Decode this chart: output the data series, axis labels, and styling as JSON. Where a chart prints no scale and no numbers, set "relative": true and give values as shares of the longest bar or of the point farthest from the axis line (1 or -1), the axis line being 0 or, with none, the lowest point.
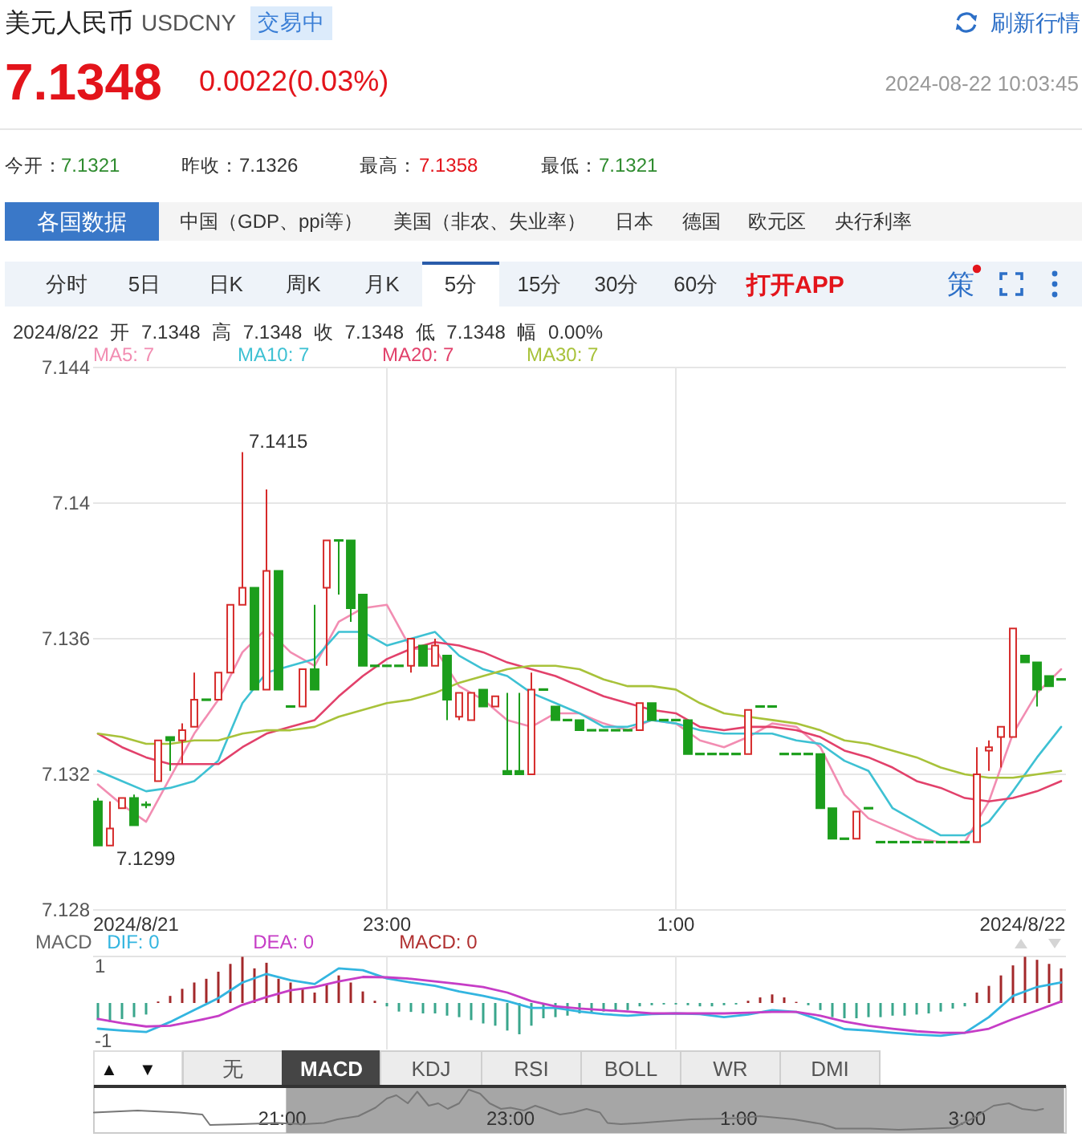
{
  "chart_data": [
    {
      "type": "other",
      "title": "美元人民币",
      "annotations": [
        "USDCNY",
        "交易中",
        "刷新行情",
        "7.1348",
        "0.0022(0.03%)",
        "2024-08-22 10:03:45",
        "今开：",
        "7.1321",
        "昨收：",
        "7.1326",
        "最高：",
        "7.1358",
        "最低：",
        "7.1321",
        "各国数据",
        "中国（GDP、ppi等）",
        "美国（非农、失业率）",
        "日本",
        "德国",
        "欧元区",
        "央行利率",
        "分时",
        "5日",
        "日K",
        "周K",
        "月K",
        "5分",
        "15分",
        "30分",
        "60分",
        "打开APP",
        "策"
      ]
    },
    {
      "type": "candlestick",
      "subtitle": "2024/8/22 开 7.1348 高 7.1348 收 7.1348 低 7.1348 幅 0.00%",
      "x": [
        "2024-08-21T21:00",
        "2024-08-21T21:05",
        "2024-08-21T21:10",
        "2024-08-21T21:15",
        "2024-08-21T21:20",
        "2024-08-21T21:25",
        "2024-08-21T21:30",
        "2024-08-21T21:35",
        "2024-08-21T21:40",
        "2024-08-21T21:45",
        "2024-08-21T21:50",
        "2024-08-21T21:55",
        "2024-08-21T22:00",
        "2024-08-21T22:05",
        "2024-08-21T22:10",
        "2024-08-21T22:15",
        "2024-08-21T22:20",
        "2024-08-21T22:25",
        "2024-08-21T22:30",
        "2024-08-21T22:35",
        "2024-08-21T22:40",
        "2024-08-21T22:45",
        "2024-08-21T22:50",
        "2024-08-21T22:55",
        "2024-08-21T23:00",
        "2024-08-21T23:05",
        "2024-08-21T23:10",
        "2024-08-21T23:15",
        "2024-08-21T23:20",
        "2024-08-21T23:25",
        "2024-08-21T23:30",
        "2024-08-21T23:35",
        "2024-08-21T23:40",
        "2024-08-21T23:45",
        "2024-08-21T23:50",
        "2024-08-21T23:55",
        "2024-08-22T00:00",
        "2024-08-22T00:05",
        "2024-08-22T00:10",
        "2024-08-22T00:15",
        "2024-08-22T00:20",
        "2024-08-22T00:25",
        "2024-08-22T00:30",
        "2024-08-22T00:35",
        "2024-08-22T00:40",
        "2024-08-22T00:45",
        "2024-08-22T00:50",
        "2024-08-22T00:55",
        "2024-08-22T01:00",
        "2024-08-22T01:05",
        "2024-08-22T01:10",
        "2024-08-22T01:15",
        "2024-08-22T01:20",
        "2024-08-22T01:25",
        "2024-08-22T01:30",
        "2024-08-22T01:35",
        "2024-08-22T01:40",
        "2024-08-22T01:45",
        "2024-08-22T01:50",
        "2024-08-22T01:55",
        "2024-08-22T02:00",
        "2024-08-22T02:05",
        "2024-08-22T02:10",
        "2024-08-22T02:15",
        "2024-08-22T02:20",
        "2024-08-22T02:25",
        "2024-08-22T02:30",
        "2024-08-22T02:35",
        "2024-08-22T02:40",
        "2024-08-22T02:45",
        "2024-08-22T02:50",
        "2024-08-22T02:55",
        "2024-08-22T03:00",
        "2024-08-22T03:05",
        "2024-08-22T03:10",
        "2024-08-22T03:15",
        "2024-08-22T03:20",
        "2024-08-22T03:25",
        "2024-08-22T03:30",
        "2024-08-22T03:35",
        "2024-08-22T03:40"
      ],
      "ohlc": [
        [
          7.1312,
          7.1313,
          7.1299,
          7.1299
        ],
        [
          7.1299,
          7.1312,
          7.1299,
          7.1304
        ],
        [
          7.131,
          7.1313,
          7.131,
          7.1313
        ],
        [
          7.1313,
          7.1314,
          7.1305,
          7.1305
        ],
        [
          7.1311,
          7.1312,
          7.131,
          7.1311
        ],
        [
          7.1318,
          7.133,
          7.1318,
          7.133
        ],
        [
          7.1331,
          7.1331,
          7.1321,
          7.133
        ],
        [
          7.133,
          7.1335,
          7.1323,
          7.1333
        ],
        [
          7.1334,
          7.135,
          7.1334,
          7.1342
        ],
        [
          7.1342,
          7.1342,
          7.1342,
          7.1342
        ],
        [
          7.1342,
          7.135,
          7.1342,
          7.135
        ],
        [
          7.135,
          7.137,
          7.135,
          7.137
        ],
        [
          7.137,
          7.1415,
          7.137,
          7.1375
        ],
        [
          7.1375,
          7.1375,
          7.1345,
          7.1345
        ],
        [
          7.1345,
          7.1404,
          7.1345,
          7.138
        ],
        [
          7.138,
          7.138,
          7.1345,
          7.1345
        ],
        [
          7.134,
          7.134,
          7.134,
          7.134
        ],
        [
          7.134,
          7.1351,
          7.134,
          7.1351
        ],
        [
          7.1351,
          7.137,
          7.1345,
          7.1345
        ],
        [
          7.1375,
          7.1389,
          7.1352,
          7.1389
        ],
        [
          7.1389,
          7.1389,
          7.1373,
          7.1389
        ],
        [
          7.1389,
          7.1389,
          7.1365,
          7.1369
        ],
        [
          7.1373,
          7.1373,
          7.1352,
          7.1352
        ],
        [
          7.1352,
          7.1352,
          7.1352,
          7.1352
        ],
        [
          7.1352,
          7.1352,
          7.1352,
          7.1352
        ],
        [
          7.1352,
          7.1352,
          7.1352,
          7.1352
        ],
        [
          7.1352,
          7.136,
          7.135,
          7.136
        ],
        [
          7.1358,
          7.1358,
          7.1352,
          7.1352
        ],
        [
          7.1352,
          7.136,
          7.1352,
          7.1358
        ],
        [
          7.1355,
          7.1355,
          7.1336,
          7.1342
        ],
        [
          7.1337,
          7.1344,
          7.1336,
          7.1344
        ],
        [
          7.1336,
          7.1344,
          7.1336,
          7.1344
        ],
        [
          7.1345,
          7.1345,
          7.134,
          7.134
        ],
        [
          7.134,
          7.1343,
          7.134,
          7.1343
        ],
        [
          7.1321,
          7.1344,
          7.132,
          7.132
        ],
        [
          7.1321,
          7.1344,
          7.132,
          7.132
        ],
        [
          7.132,
          7.135,
          7.132,
          7.1345
        ],
        [
          7.1345,
          7.1345,
          7.1345,
          7.1345
        ],
        [
          7.134,
          7.134,
          7.1336,
          7.1336
        ],
        [
          7.1336,
          7.1336,
          7.1336,
          7.1336
        ],
        [
          7.1336,
          7.1336,
          7.1333,
          7.1333
        ],
        [
          7.1333,
          7.1333,
          7.1333,
          7.1333
        ],
        [
          7.1333,
          7.1333,
          7.1333,
          7.1333
        ],
        [
          7.1333,
          7.1333,
          7.1333,
          7.1333
        ],
        [
          7.1333,
          7.1333,
          7.1333,
          7.1333
        ],
        [
          7.1333,
          7.1341,
          7.1333,
          7.1341
        ],
        [
          7.1341,
          7.1341,
          7.1336,
          7.1336
        ],
        [
          7.1336,
          7.1336,
          7.1336,
          7.1336
        ],
        [
          7.1336,
          7.1336,
          7.1336,
          7.1336
        ],
        [
          7.1336,
          7.1336,
          7.1326,
          7.1326
        ],
        [
          7.1326,
          7.1326,
          7.1326,
          7.1326
        ],
        [
          7.1326,
          7.1326,
          7.1326,
          7.1326
        ],
        [
          7.1326,
          7.1326,
          7.1326,
          7.1326
        ],
        [
          7.1326,
          7.1326,
          7.1326,
          7.1326
        ],
        [
          7.1326,
          7.1339,
          7.1326,
          7.1339
        ],
        [
          7.134,
          7.134,
          7.134,
          7.134
        ],
        [
          7.134,
          7.134,
          7.134,
          7.134
        ],
        [
          7.1326,
          7.1326,
          7.1326,
          7.1326
        ],
        [
          7.1326,
          7.1326,
          7.1326,
          7.1326
        ],
        [
          7.1326,
          7.1326,
          7.1326,
          7.1326
        ],
        [
          7.1326,
          7.1326,
          7.131,
          7.131
        ],
        [
          7.131,
          7.131,
          7.1301,
          7.1301
        ],
        [
          7.1301,
          7.1301,
          7.1301,
          7.1301
        ],
        [
          7.1301,
          7.1309,
          7.1301,
          7.1309
        ],
        [
          7.131,
          7.131,
          7.131,
          7.131
        ],
        [
          7.13,
          7.13,
          7.13,
          7.13
        ],
        [
          7.13,
          7.13,
          7.13,
          7.13
        ],
        [
          7.13,
          7.13,
          7.13,
          7.13
        ],
        [
          7.13,
          7.13,
          7.13,
          7.13
        ],
        [
          7.13,
          7.13,
          7.13,
          7.13
        ],
        [
          7.13,
          7.13,
          7.13,
          7.13
        ],
        [
          7.13,
          7.13,
          7.13,
          7.13
        ],
        [
          7.13,
          7.13,
          7.13,
          7.13
        ],
        [
          7.13,
          7.1328,
          7.13,
          7.132
        ],
        [
          7.1327,
          7.133,
          7.1321,
          7.1328
        ],
        [
          7.1331,
          7.1334,
          7.1322,
          7.1334
        ],
        [
          7.1331,
          7.1363,
          7.1331,
          7.1363
        ],
        [
          7.1355,
          7.1355,
          7.1353,
          7.1353
        ],
        [
          7.1353,
          7.1353,
          7.134,
          7.1345
        ],
        [
          7.1349,
          7.1349,
          7.1346,
          7.1346
        ],
        [
          7.1348,
          7.1348,
          7.1348,
          7.1348
        ]
      ],
      "colors": [
        "#1c9e1c",
        "#d62b2b",
        "#d62b2b",
        "#1c9e1c",
        "#1c9e1c",
        "#d62b2b",
        "#1c9e1c",
        "#d62b2b",
        "#d62b2b",
        "#1c9e1c",
        "#d62b2b",
        "#d62b2b",
        "#d62b2b",
        "#1c9e1c",
        "#d62b2b",
        "#1c9e1c",
        "#1c9e1c",
        "#d62b2b",
        "#1c9e1c",
        "#d62b2b",
        "#1c9e1c",
        "#1c9e1c",
        "#1c9e1c",
        "#1c9e1c",
        "#1c9e1c",
        "#1c9e1c",
        "#d62b2b",
        "#1c9e1c",
        "#d62b2b",
        "#1c9e1c",
        "#d62b2b",
        "#d62b2b",
        "#1c9e1c",
        "#d62b2b",
        "#1c9e1c",
        "#1c9e1c",
        "#d62b2b",
        "#1c9e1c",
        "#1c9e1c",
        "#1c9e1c",
        "#1c9e1c",
        "#1c9e1c",
        "#1c9e1c",
        "#1c9e1c",
        "#1c9e1c",
        "#d62b2b",
        "#1c9e1c",
        "#1c9e1c",
        "#1c9e1c",
        "#1c9e1c",
        "#1c9e1c",
        "#1c9e1c",
        "#1c9e1c",
        "#1c9e1c",
        "#d62b2b",
        "#1c9e1c",
        "#1c9e1c",
        "#1c9e1c",
        "#1c9e1c",
        "#1c9e1c",
        "#1c9e1c",
        "#1c9e1c",
        "#1c9e1c",
        "#d62b2b",
        "#1c9e1c",
        "#1c9e1c",
        "#1c9e1c",
        "#1c9e1c",
        "#1c9e1c",
        "#1c9e1c",
        "#1c9e1c",
        "#1c9e1c",
        "#1c9e1c",
        "#d62b2b",
        "#d62b2b",
        "#d62b2b",
        "#d62b2b",
        "#1c9e1c",
        "#1c9e1c",
        "#1c9e1c",
        "#1c9e1c"
      ],
      "series": [
        {
          "name": "MA5: 7",
          "type": "line",
          "color": "#f28db2",
          "x": [
            "2024-08-21T21:00",
            "2024-08-21T21:10",
            "2024-08-21T21:20",
            "2024-08-21T21:30",
            "2024-08-21T21:40",
            "2024-08-21T21:50",
            "2024-08-21T22:00",
            "2024-08-21T22:10",
            "2024-08-21T22:20",
            "2024-08-21T22:30",
            "2024-08-21T22:40",
            "2024-08-21T22:50",
            "2024-08-21T23:00",
            "2024-08-21T23:10",
            "2024-08-21T23:20",
            "2024-08-21T23:30",
            "2024-08-21T23:40",
            "2024-08-21T23:50",
            "2024-08-22T00:00",
            "2024-08-22T00:10",
            "2024-08-22T00:20",
            "2024-08-22T00:30",
            "2024-08-22T00:40",
            "2024-08-22T00:50",
            "2024-08-22T01:00",
            "2024-08-22T01:10",
            "2024-08-22T01:20",
            "2024-08-22T01:30",
            "2024-08-22T01:40",
            "2024-08-22T01:50",
            "2024-08-22T02:00",
            "2024-08-22T02:10",
            "2024-08-22T02:20",
            "2024-08-22T02:30",
            "2024-08-22T02:40",
            "2024-08-22T02:50",
            "2024-08-22T03:00",
            "2024-08-22T03:10",
            "2024-08-22T03:20",
            "2024-08-22T03:30",
            "2024-08-22T03:40"
          ],
          "values": [
            7.1317,
            7.1311,
            7.1306,
            7.1319,
            7.1332,
            7.1342,
            7.1356,
            7.1363,
            7.1356,
            7.1352,
            7.1365,
            7.1369,
            7.137,
            7.1357,
            7.1357,
            7.1346,
            7.1342,
            7.1336,
            7.1334,
            7.1338,
            7.1338,
            7.1335,
            7.1333,
            7.1336,
            7.1335,
            7.133,
            7.1328,
            7.1331,
            7.1335,
            7.1334,
            7.1328,
            7.1314,
            7.1307,
            7.1304,
            7.1301,
            7.13,
            7.13,
            7.1312,
            7.1332,
            7.1344,
            7.1351
          ]
        },
        {
          "name": "MA10: 7",
          "type": "line",
          "color": "#3ec1d3",
          "x": [
            "2024-08-21T21:00",
            "2024-08-21T21:10",
            "2024-08-21T21:20",
            "2024-08-21T21:30",
            "2024-08-21T21:40",
            "2024-08-21T21:50",
            "2024-08-21T22:00",
            "2024-08-21T22:10",
            "2024-08-21T22:20",
            "2024-08-21T22:30",
            "2024-08-21T22:40",
            "2024-08-21T22:50",
            "2024-08-21T23:00",
            "2024-08-21T23:10",
            "2024-08-21T23:20",
            "2024-08-21T23:30",
            "2024-08-21T23:40",
            "2024-08-21T23:50",
            "2024-08-22T00:00",
            "2024-08-22T00:10",
            "2024-08-22T00:20",
            "2024-08-22T00:30",
            "2024-08-22T00:40",
            "2024-08-22T00:50",
            "2024-08-22T01:00",
            "2024-08-22T01:10",
            "2024-08-22T01:20",
            "2024-08-22T01:30",
            "2024-08-22T01:40",
            "2024-08-22T01:50",
            "2024-08-22T02:00",
            "2024-08-22T02:10",
            "2024-08-22T02:20",
            "2024-08-22T02:30",
            "2024-08-22T02:40",
            "2024-08-22T02:50",
            "2024-08-22T03:00",
            "2024-08-22T03:10",
            "2024-08-22T03:20",
            "2024-08-22T03:30",
            "2024-08-22T03:40"
          ],
          "values": [
            7.1321,
            7.1318,
            7.1315,
            7.1316,
            7.1318,
            7.1324,
            7.1341,
            7.135,
            7.1352,
            7.1354,
            7.1362,
            7.1362,
            7.1358,
            7.136,
            7.1362,
            7.1355,
            7.1351,
            7.1349,
            7.1344,
            7.1341,
            7.1338,
            7.1334,
            7.1334,
            7.1336,
            7.1335,
            7.1333,
            7.1332,
            7.1332,
            7.1332,
            7.133,
            7.1329,
            7.1324,
            7.1321,
            7.131,
            7.1306,
            7.1302,
            7.1302,
            7.1306,
            7.1315,
            7.1325,
            7.1334
          ]
        },
        {
          "name": "MA20: 7",
          "type": "line",
          "color": "#e2416b",
          "x": [
            "2024-08-21T21:00",
            "2024-08-21T21:10",
            "2024-08-21T21:20",
            "2024-08-21T21:30",
            "2024-08-21T21:40",
            "2024-08-21T21:50",
            "2024-08-21T22:00",
            "2024-08-21T22:10",
            "2024-08-21T22:20",
            "2024-08-21T22:30",
            "2024-08-21T22:40",
            "2024-08-21T22:50",
            "2024-08-21T23:00",
            "2024-08-21T23:10",
            "2024-08-21T23:20",
            "2024-08-21T23:30",
            "2024-08-21T23:40",
            "2024-08-21T23:50",
            "2024-08-22T00:00",
            "2024-08-22T00:10",
            "2024-08-22T00:20",
            "2024-08-22T00:30",
            "2024-08-22T00:40",
            "2024-08-22T00:50",
            "2024-08-22T01:00",
            "2024-08-22T01:10",
            "2024-08-22T01:20",
            "2024-08-22T01:30",
            "2024-08-22T01:40",
            "2024-08-22T01:50",
            "2024-08-22T02:00",
            "2024-08-22T02:10",
            "2024-08-22T02:20",
            "2024-08-22T02:30",
            "2024-08-22T02:40",
            "2024-08-22T02:50",
            "2024-08-22T03:00",
            "2024-08-22T03:10",
            "2024-08-22T03:20",
            "2024-08-22T03:30",
            "2024-08-22T03:40"
          ],
          "values": [
            7.1332,
            7.1328,
            7.1325,
            7.1323,
            7.1323,
            7.1323,
            7.1328,
            7.1332,
            7.1334,
            7.1336,
            7.1343,
            7.1349,
            7.1354,
            7.1357,
            7.1359,
            7.1358,
            7.1356,
            7.1353,
            7.1351,
            7.1349,
            7.1346,
            7.1343,
            7.1341,
            7.1339,
            7.1338,
            7.1334,
            7.1333,
            7.1334,
            7.1334,
            7.1333,
            7.1331,
            7.1327,
            7.1325,
            7.1322,
            7.1318,
            7.1316,
            7.1313,
            7.1312,
            7.1313,
            7.1315,
            7.1318
          ]
        },
        {
          "name": "MA30: 7",
          "type": "line",
          "color": "#a8c23a",
          "x": [
            "2024-08-21T21:00",
            "2024-08-21T21:10",
            "2024-08-21T21:20",
            "2024-08-21T21:30",
            "2024-08-21T21:40",
            "2024-08-21T21:50",
            "2024-08-21T22:00",
            "2024-08-21T22:10",
            "2024-08-21T22:20",
            "2024-08-21T22:30",
            "2024-08-21T22:40",
            "2024-08-21T22:50",
            "2024-08-21T23:00",
            "2024-08-21T23:10",
            "2024-08-21T23:20",
            "2024-08-21T23:30",
            "2024-08-21T23:40",
            "2024-08-21T23:50",
            "2024-08-22T00:00",
            "2024-08-22T00:10",
            "2024-08-22T00:20",
            "2024-08-22T00:30",
            "2024-08-22T00:40",
            "2024-08-22T00:50",
            "2024-08-22T01:00",
            "2024-08-22T01:10",
            "2024-08-22T01:20",
            "2024-08-22T01:30",
            "2024-08-22T01:40",
            "2024-08-22T01:50",
            "2024-08-22T02:00",
            "2024-08-22T02:10",
            "2024-08-22T02:20",
            "2024-08-22T02:30",
            "2024-08-22T02:40",
            "2024-08-22T02:50",
            "2024-08-22T03:00",
            "2024-08-22T03:10",
            "2024-08-22T03:20",
            "2024-08-22T03:30",
            "2024-08-22T03:40"
          ],
          "values": [
            7.1332,
            7.1331,
            7.1329,
            7.1329,
            7.133,
            7.133,
            7.1332,
            7.1333,
            7.1333,
            7.1334,
            7.1337,
            7.1339,
            7.1341,
            7.1342,
            7.1344,
            7.1347,
            7.1349,
            7.1351,
            7.1352,
            7.1352,
            7.1351,
            7.1348,
            7.1346,
            7.1346,
            7.1345,
            7.1341,
            7.1338,
            7.1337,
            7.1336,
            7.1335,
            7.1333,
            7.133,
            7.1329,
            7.1327,
            7.1325,
            7.1322,
            7.132,
            7.1319,
            7.1319,
            7.132,
            7.1321
          ]
        }
      ],
      "xlim": [
        "2024-08-21T20:58",
        "2024-08-22T03:42"
      ],
      "xticks": [
        {
          "value": "2024-08-21T21:00",
          "label": "2024/8/21"
        },
        {
          "value": "2024-08-21T23:00",
          "label": "23:00"
        },
        {
          "value": "2024-08-22T01:00",
          "label": "1:00"
        },
        {
          "value": "2024-08-22T03:40",
          "label": "2024/8/22"
        }
      ],
      "ylim": [
        7.128,
        7.144
      ],
      "yticks": [
        7.128,
        7.132,
        7.136,
        7.14,
        7.144
      ],
      "grid": true,
      "legend": "top left",
      "annotations": [
        {
          "text": "7.1415",
          "x": "2024-08-21T22:00",
          "y": 7.1415
        },
        {
          "text": "7.1299",
          "x": "2024-08-21T21:05",
          "y": 7.1299
        }
      ]
    },
    {
      "type": "bar",
      "title": "MACD",
      "x": [
        "2024-08-21T21:00",
        "2024-08-21T21:05",
        "2024-08-21T21:10",
        "2024-08-21T21:15",
        "2024-08-21T21:20",
        "2024-08-21T21:25",
        "2024-08-21T21:30",
        "2024-08-21T21:35",
        "2024-08-21T21:40",
        "2024-08-21T21:45",
        "2024-08-21T21:50",
        "2024-08-21T21:55",
        "2024-08-21T22:00",
        "2024-08-21T22:05",
        "2024-08-21T22:10",
        "2024-08-21T22:15",
        "2024-08-21T22:20",
        "2024-08-21T22:25",
        "2024-08-21T22:30",
        "2024-08-21T22:35",
        "2024-08-21T22:40",
        "2024-08-21T22:45",
        "2024-08-21T22:50",
        "2024-08-21T22:55",
        "2024-08-21T23:00",
        "2024-08-21T23:05",
        "2024-08-21T23:10",
        "2024-08-21T23:15",
        "2024-08-21T23:20",
        "2024-08-21T23:25",
        "2024-08-21T23:30",
        "2024-08-21T23:35",
        "2024-08-21T23:40",
        "2024-08-21T23:45",
        "2024-08-21T23:50",
        "2024-08-21T23:55",
        "2024-08-22T00:00",
        "2024-08-22T00:05",
        "2024-08-22T00:10",
        "2024-08-22T00:15",
        "2024-08-22T00:20",
        "2024-08-22T00:25",
        "2024-08-22T00:30",
        "2024-08-22T00:35",
        "2024-08-22T00:40",
        "2024-08-22T00:45",
        "2024-08-22T00:50",
        "2024-08-22T00:55",
        "2024-08-22T01:00",
        "2024-08-22T01:05",
        "2024-08-22T01:10",
        "2024-08-22T01:15",
        "2024-08-22T01:20",
        "2024-08-22T01:25",
        "2024-08-22T01:30",
        "2024-08-22T01:35",
        "2024-08-22T01:40",
        "2024-08-22T01:45",
        "2024-08-22T01:50",
        "2024-08-22T01:55",
        "2024-08-22T02:00",
        "2024-08-22T02:05",
        "2024-08-22T02:10",
        "2024-08-22T02:15",
        "2024-08-22T02:20",
        "2024-08-22T02:25",
        "2024-08-22T02:30",
        "2024-08-22T02:35",
        "2024-08-22T02:40",
        "2024-08-22T02:45",
        "2024-08-22T02:50",
        "2024-08-22T02:55",
        "2024-08-22T03:00",
        "2024-08-22T03:05",
        "2024-08-22T03:10",
        "2024-08-22T03:15",
        "2024-08-22T03:20",
        "2024-08-22T03:25",
        "2024-08-22T03:30",
        "2024-08-22T03:35",
        "2024-08-22T03:40"
      ],
      "series": [
        {
          "name": "DIF: 0",
          "type": "line",
          "color": "#33b5e0",
          "x": [
            "2024-08-21T21:00",
            "2024-08-21T21:10",
            "2024-08-21T21:20",
            "2024-08-21T21:30",
            "2024-08-21T21:40",
            "2024-08-21T21:50",
            "2024-08-21T22:00",
            "2024-08-21T22:10",
            "2024-08-21T22:20",
            "2024-08-21T22:30",
            "2024-08-21T22:40",
            "2024-08-21T22:50",
            "2024-08-21T23:00",
            "2024-08-21T23:10",
            "2024-08-21T23:20",
            "2024-08-21T23:30",
            "2024-08-21T23:40",
            "2024-08-21T23:50",
            "2024-08-22T00:00",
            "2024-08-22T00:10",
            "2024-08-22T00:20",
            "2024-08-22T00:30",
            "2024-08-22T00:40",
            "2024-08-22T00:50",
            "2024-08-22T01:00",
            "2024-08-22T01:10",
            "2024-08-22T01:20",
            "2024-08-22T01:30",
            "2024-08-22T01:40",
            "2024-08-22T01:50",
            "2024-08-22T02:00",
            "2024-08-22T02:10",
            "2024-08-22T02:20",
            "2024-08-22T02:30",
            "2024-08-22T02:40",
            "2024-08-22T02:50",
            "2024-08-22T03:00",
            "2024-08-22T03:10",
            "2024-08-22T03:20",
            "2024-08-22T03:30",
            "2024-08-22T03:40"
          ],
          "values": [
            -0.69,
            -0.74,
            -0.78,
            -0.51,
            -0.19,
            0.13,
            0.55,
            0.78,
            0.61,
            0.51,
            0.93,
            0.88,
            0.66,
            0.55,
            0.46,
            0.31,
            0.19,
            0.05,
            -0.13,
            -0.13,
            -0.23,
            -0.3,
            -0.34,
            -0.3,
            -0.28,
            -0.3,
            -0.38,
            -0.31,
            -0.19,
            -0.24,
            -0.46,
            -0.7,
            -0.74,
            -0.8,
            -0.85,
            -0.88,
            -0.8,
            -0.38,
            0.19,
            0.43,
            0.55
          ]
        },
        {
          "name": "DEA: 0",
          "type": "line",
          "color": "#c63dc6",
          "x": [
            "2024-08-21T21:00",
            "2024-08-21T21:10",
            "2024-08-21T21:20",
            "2024-08-21T21:30",
            "2024-08-21T21:40",
            "2024-08-21T21:50",
            "2024-08-21T22:00",
            "2024-08-21T22:10",
            "2024-08-21T22:20",
            "2024-08-21T22:30",
            "2024-08-21T22:40",
            "2024-08-21T22:50",
            "2024-08-21T23:00",
            "2024-08-21T23:10",
            "2024-08-21T23:20",
            "2024-08-21T23:30",
            "2024-08-21T23:40",
            "2024-08-21T23:50",
            "2024-08-22T00:00",
            "2024-08-22T00:10",
            "2024-08-22T00:20",
            "2024-08-22T00:30",
            "2024-08-22T00:40",
            "2024-08-22T00:50",
            "2024-08-22T01:00",
            "2024-08-22T01:10",
            "2024-08-22T01:20",
            "2024-08-22T01:30",
            "2024-08-22T01:40",
            "2024-08-22T01:50",
            "2024-08-22T02:00",
            "2024-08-22T02:10",
            "2024-08-22T02:20",
            "2024-08-22T02:30",
            "2024-08-22T02:40",
            "2024-08-22T02:50",
            "2024-08-22T03:00",
            "2024-08-22T03:10",
            "2024-08-22T03:20",
            "2024-08-22T03:30",
            "2024-08-22T03:40"
          ],
          "values": [
            -0.43,
            -0.54,
            -0.63,
            -0.61,
            -0.49,
            -0.35,
            -0.05,
            0.16,
            0.34,
            0.43,
            0.58,
            0.7,
            0.69,
            0.65,
            0.58,
            0.51,
            0.43,
            0.28,
            0.05,
            -0.09,
            -0.15,
            -0.19,
            -0.23,
            -0.28,
            -0.28,
            -0.28,
            -0.28,
            -0.26,
            -0.24,
            -0.24,
            -0.34,
            -0.5,
            -0.61,
            -0.69,
            -0.76,
            -0.8,
            -0.8,
            -0.69,
            -0.43,
            -0.2,
            0.04
          ]
        },
        {
          "name": "MACD: 0",
          "color": "#b03030",
          "colors": [
            "#3aa68c",
            "#3aa68c",
            "#3aa68c",
            "#3aa68c",
            "#3aa68c",
            "#a3282a",
            "#a3282a",
            "#a3282a",
            "#a3282a",
            "#a3282a",
            "#a3282a",
            "#a3282a",
            "#a3282a",
            "#a3282a",
            "#a3282a",
            "#a3282a",
            "#a3282a",
            "#a3282a",
            "#a3282a",
            "#a3282a",
            "#a3282a",
            "#a3282a",
            "#a3282a",
            "#a3282a",
            "#3aa68c",
            "#3aa68c",
            "#3aa68c",
            "#3aa68c",
            "#3aa68c",
            "#3aa68c",
            "#3aa68c",
            "#3aa68c",
            "#3aa68c",
            "#3aa68c",
            "#3aa68c",
            "#3aa68c",
            "#3aa68c",
            "#3aa68c",
            "#3aa68c",
            "#3aa68c",
            "#3aa68c",
            "#3aa68c",
            "#3aa68c",
            "#3aa68c",
            "#3aa68c",
            "#3aa68c",
            "#3aa68c",
            "#3aa68c",
            "#3aa68c",
            "#3aa68c",
            "#3aa68c",
            "#3aa68c",
            "#3aa68c",
            "#3aa68c",
            "#a3282a",
            "#a3282a",
            "#a3282a",
            "#a3282a",
            "#a3282a",
            "#3aa68c",
            "#3aa68c",
            "#3aa68c",
            "#3aa68c",
            "#3aa68c",
            "#3aa68c",
            "#3aa68c",
            "#3aa68c",
            "#3aa68c",
            "#3aa68c",
            "#3aa68c",
            "#3aa68c",
            "#3aa68c",
            "#3aa68c",
            "#a3282a",
            "#a3282a",
            "#a3282a",
            "#a3282a",
            "#a3282a",
            "#a3282a",
            "#a3282a",
            "#a3282a"
          ],
          "values": [
            -0.46,
            -0.51,
            -0.43,
            -0.38,
            -0.31,
            0.04,
            0.19,
            0.38,
            0.55,
            0.65,
            0.84,
            1.05,
            1.24,
            0.93,
            1.08,
            0.65,
            0.55,
            0.38,
            0.28,
            0.5,
            0.74,
            0.55,
            0.31,
            0.06,
            -0.09,
            -0.23,
            -0.24,
            -0.28,
            -0.28,
            -0.34,
            -0.38,
            -0.46,
            -0.55,
            -0.61,
            -0.74,
            -0.84,
            -0.61,
            -0.41,
            -0.38,
            -0.34,
            -0.28,
            -0.24,
            -0.23,
            -0.19,
            -0.19,
            -0.09,
            -0.06,
            -0.04,
            -0.04,
            -0.06,
            -0.09,
            -0.09,
            -0.06,
            -0.04,
            0.06,
            0.15,
            0.23,
            0.15,
            0.03,
            -0.06,
            -0.19,
            -0.38,
            -0.41,
            -0.41,
            -0.38,
            -0.38,
            -0.34,
            -0.34,
            -0.31,
            -0.28,
            -0.23,
            -0.15,
            -0.09,
            0.28,
            0.46,
            0.74,
            1.01,
            1.24,
            1.16,
            1.05,
            0.93
          ]
        }
      ],
      "xlim": [
        "2024-08-21T20:58",
        "2024-08-22T03:42"
      ],
      "xticks": [
        {
          "value": "2024-08-21T21:00",
          "label": null
        },
        {
          "value": "2024-08-21T23:00",
          "label": null
        },
        {
          "value": "2024-08-22T01:00",
          "label": null
        },
        {
          "value": "2024-08-22T03:40",
          "label": null
        }
      ],
      "ylim": [
        -1.25,
        1.25
      ],
      "yticks": [
        1,
        -1
      ],
      "grid": "x",
      "legend": "top left",
      "tick_labels": "y"
    },
    {
      "type": "other",
      "annotations": [
        "▲",
        "▼",
        "无",
        "MACD",
        "KDJ",
        "RSI",
        "BOLL",
        "WR",
        "DMI"
      ]
    },
    {
      "type": "line",
      "relative": true,
      "color": "#777777",
      "x": [
        "2024-08-21T19:21",
        "2024-08-21T19:44",
        "2024-08-21T20:06",
        "2024-08-21T20:18",
        "2024-08-21T20:22",
        "2024-08-21T20:38",
        "2024-08-21T20:57",
        "2024-08-21T21:11",
        "2024-08-21T21:22",
        "2024-08-21T21:29",
        "2024-08-21T21:40",
        "2024-08-21T21:49",
        "2024-08-21T21:55",
        "2024-08-21T22:00",
        "2024-08-21T22:06",
        "2024-08-21T22:11",
        "2024-08-21T22:17",
        "2024-08-21T22:22",
        "2024-08-21T22:27",
        "2024-08-21T22:33",
        "2024-08-21T22:38",
        "2024-08-21T22:44",
        "2024-08-21T22:49",
        "2024-08-21T22:55",
        "2024-08-21T23:00",
        "2024-08-21T23:07",
        "2024-08-21T23:13",
        "2024-08-21T23:18",
        "2024-08-21T23:26",
        "2024-08-21T23:33",
        "2024-08-21T23:40",
        "2024-08-21T23:47",
        "2024-08-21T23:51",
        "2024-08-21T23:58",
        "2024-08-22T00:09",
        "2024-08-22T00:20",
        "2024-08-22T00:35",
        "2024-08-22T01:00",
        "2024-08-22T01:11",
        "2024-08-22T01:29",
        "2024-08-22T01:44",
        "2024-08-22T01:51",
        "2024-08-22T02:09",
        "2024-08-22T02:24",
        "2024-08-22T02:53",
        "2024-08-22T03:04",
        "2024-08-22T03:14",
        "2024-08-22T03:22",
        "2024-08-22T03:29",
        "2024-08-22T03:36",
        "2024-08-22T03:40"
      ],
      "values": [
        0.43,
        0.48,
        0.43,
        0.38,
        0.12,
        0.14,
        0.17,
        0.14,
        0.17,
        0.26,
        0.34,
        0.55,
        0.78,
        0.86,
        0.66,
        0.95,
        0.6,
        0.66,
        0.52,
        0.66,
        1,
        0.9,
        0.66,
        0.52,
        0.55,
        0.48,
        0.6,
        0.52,
        0.38,
        0.43,
        0.52,
        0.43,
        0.17,
        0.14,
        0.17,
        0.21,
        0.26,
        0.29,
        0.34,
        0.26,
        0.14,
        0.03,
        0.03,
        0,
        0.05,
        0.31,
        0.6,
        0.66,
        0.52,
        0.48,
        0.52
      ],
      "xlim": [
        "2024-08-21T19:21",
        "2024-08-22T03:52"
      ],
      "xticks": [
        {
          "value": "2024-08-21T21:00",
          "label": "21:00"
        },
        {
          "value": "2024-08-21T23:00",
          "label": "23:00"
        },
        {
          "value": "2024-08-22T01:00",
          "label": "1:00"
        },
        {
          "value": "2024-08-22T03:00",
          "label": "3:00"
        }
      ],
      "bands": [
        {
          "axis": "x",
          "from": "2024-08-21T21:02",
          "to": "2024-08-22T03:51",
          "color": "#a6a6a6"
        }
      ]
    }
  ]
}
